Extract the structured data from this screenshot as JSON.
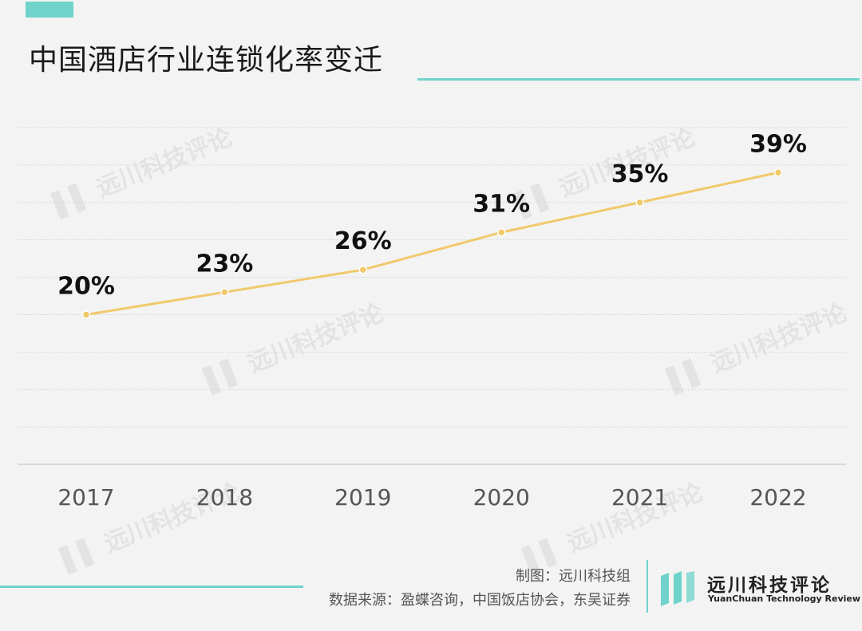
{
  "title": "中国酒店行业连锁化率变迁",
  "chart_data": {
    "type": "line",
    "categories": [
      "2017",
      "2018",
      "2019",
      "2020",
      "2021",
      "2022"
    ],
    "values": [
      20,
      23,
      26,
      31,
      35,
      39
    ],
    "value_labels": [
      "20%",
      "23%",
      "26%",
      "31%",
      "35%",
      "39%"
    ],
    "ylim": [
      0,
      45
    ],
    "grid": true,
    "line_color": "#f1c96b",
    "point_color": "#f1c96b"
  },
  "footer": {
    "credit": "制图：远川科技组",
    "source": "数据来源：盈蝶咨询，中国饭店协会，东吴证券",
    "brand_name": "远川科技评论",
    "brand_sub": "YuanChuan Technology Review"
  },
  "colors": {
    "accent": "#6fd3cb",
    "background": "#f3f3f3"
  }
}
